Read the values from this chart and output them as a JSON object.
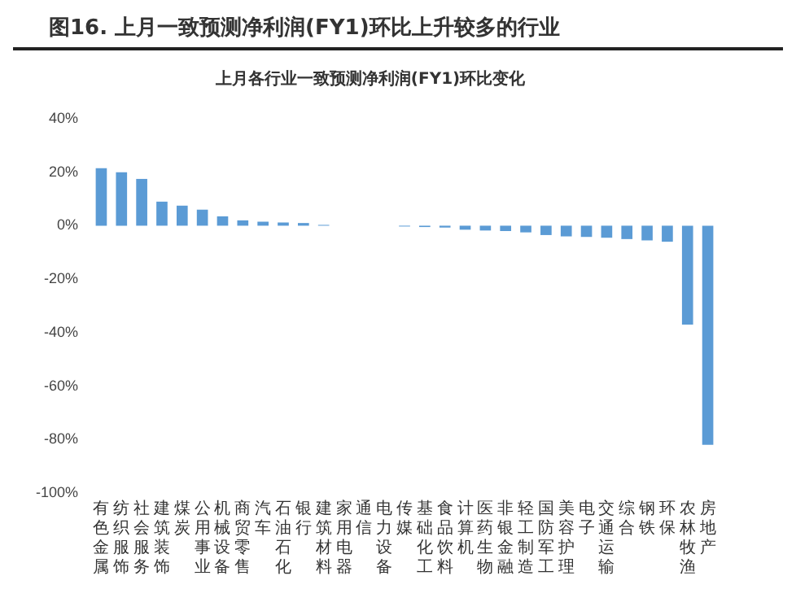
{
  "chart_data": {
    "type": "bar",
    "title": "图16. 上月一致预测净利润(FY1)环比上升较多的行业",
    "subtitle": "上月各行业一致预测净利润(FY1)环比变化",
    "categories": [
      "有色金属",
      "纺织服饰",
      "社会服务",
      "建筑装饰",
      "煤炭",
      "公用事业",
      "机械设备",
      "商贸零售",
      "汽车",
      "石油石化",
      "银行",
      "建筑材料",
      "家用电器",
      "通信",
      "电力设备",
      "传媒",
      "基础化工",
      "食品饮料",
      "计算机",
      "医药生物",
      "非银金融",
      "轻工制造",
      "国防军工",
      "美容护理",
      "电子",
      "交通运输",
      "综合",
      "钢铁",
      "环保",
      "农林牧渔",
      "房地产"
    ],
    "values": [
      21.5,
      20,
      17.5,
      9,
      7.5,
      6,
      3.5,
      2,
      1.5,
      1.2,
      1,
      0.3,
      null,
      null,
      null,
      -0.3,
      -0.5,
      -0.7,
      -1.5,
      -1.8,
      -2,
      -2.5,
      -3.5,
      -4,
      -4.2,
      -4.5,
      -5,
      -5.5,
      -6,
      -37,
      -82
    ],
    "color": "#5b9bd5",
    "ylim": [
      -100,
      40
    ],
    "yticks": [
      {
        "value": -100,
        "label": "-100%"
      },
      {
        "value": -80,
        "label": "-80%"
      },
      {
        "value": -60,
        "label": "-60%"
      },
      {
        "value": -40,
        "label": "-40%"
      },
      {
        "value": -20,
        "label": "-20%"
      },
      {
        "value": 0,
        "label": "0%"
      },
      {
        "value": 20,
        "label": "20%"
      },
      {
        "value": 40,
        "label": "40%"
      }
    ],
    "grid": false,
    "legend": false
  }
}
